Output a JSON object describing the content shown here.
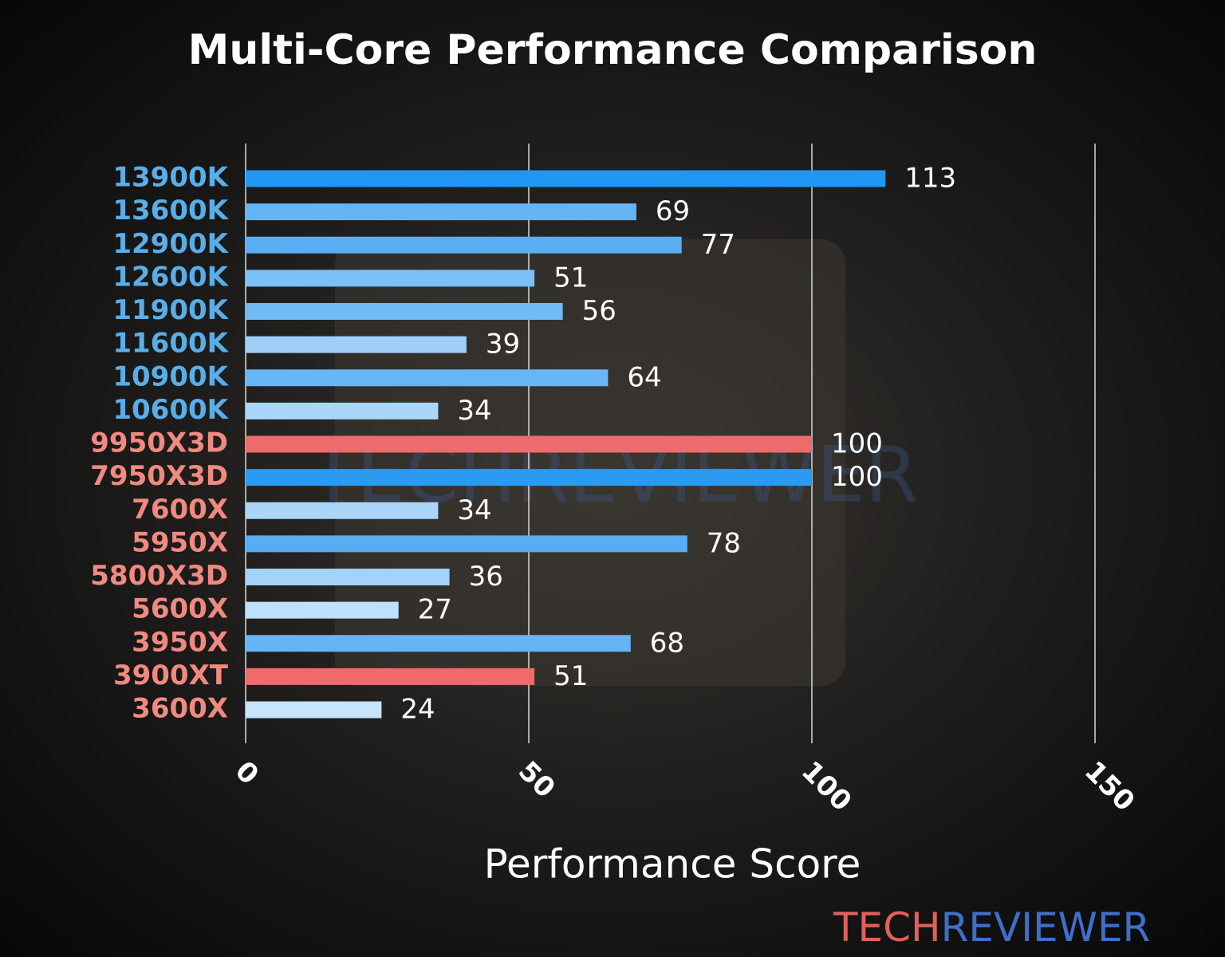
{
  "chart_data": {
    "type": "hbar",
    "title": "Multi-Core Performance Comparison",
    "xlabel": "Performance Score",
    "categories": [
      "13900K",
      "13600K",
      "12900K",
      "12600K",
      "11900K",
      "11600K",
      "10900K",
      "10600K",
      "9950X3D",
      "7950X3D",
      "7600X",
      "5950X",
      "5800X3D",
      "5600X",
      "3950X",
      "3900XT",
      "3600X"
    ],
    "values": [
      113,
      69,
      77,
      51,
      56,
      39,
      64,
      34,
      100,
      100,
      34,
      78,
      36,
      27,
      68,
      51,
      24
    ],
    "colors": [
      "#2196f3",
      "#64b5f6",
      "#59adf4",
      "#7cc0f6",
      "#71baf5",
      "#9dcff8",
      "#69b6f5",
      "#a9d6f9",
      "#ef6b6b",
      "#2b9af3",
      "#a9d6f9",
      "#58acf3",
      "#a3d3f8",
      "#bfe0fb",
      "#66b4f5",
      "#ef6b6b",
      "#c6e4fc"
    ],
    "label_colors": [
      "#5aaee8",
      "#5aaee8",
      "#5aaee8",
      "#5aaee8",
      "#5aaee8",
      "#5aaee8",
      "#5aaee8",
      "#5aaee8",
      "#f08a80",
      "#f08a80",
      "#f08a80",
      "#f08a80",
      "#f08a80",
      "#f08a80",
      "#f08a80",
      "#f08a80",
      "#f08a80"
    ],
    "xlim": [
      0,
      160
    ],
    "xticks": [
      0,
      50,
      100,
      150
    ],
    "grid": true
  },
  "watermark": "TECHREVIEWER",
  "brand": {
    "part1": "TECH",
    "part2": "REVIEWER"
  }
}
